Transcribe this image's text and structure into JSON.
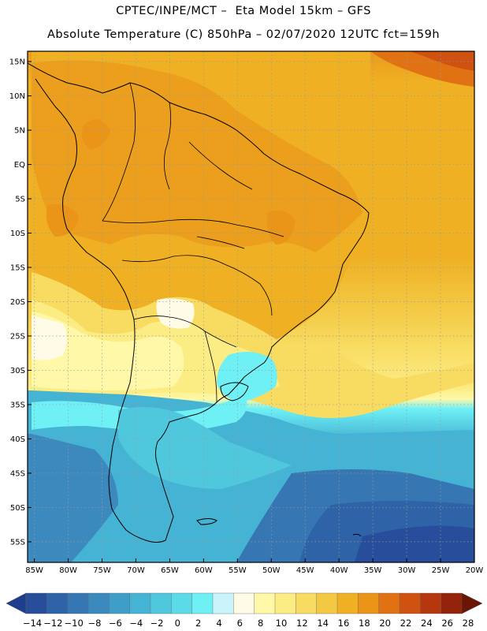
{
  "header": {
    "line1": "CPTEC/INPE/MCT –  Eta Model 15km – GFS",
    "line2": "Absolute Temperature (C) 850hPa – 02/07/2020 12UTC fct=159h"
  },
  "map": {
    "lat_labels": [
      "15N",
      "10N",
      "5N",
      "EQ",
      "5S",
      "10S",
      "15S",
      "20S",
      "25S",
      "30S",
      "35S",
      "40S",
      "45S",
      "50S",
      "55S"
    ],
    "lat_values": [
      15,
      10,
      5,
      0,
      -5,
      -10,
      -15,
      -20,
      -25,
      -30,
      -35,
      -40,
      -45,
      -50,
      -55
    ],
    "lon_labels": [
      "85W",
      "80W",
      "75W",
      "70W",
      "65W",
      "60W",
      "55W",
      "50W",
      "45W",
      "40W",
      "35W",
      "30W",
      "25W",
      "20W"
    ],
    "lon_values": [
      -85,
      -80,
      -75,
      -70,
      -65,
      -60,
      -55,
      -50,
      -45,
      -40,
      -35,
      -30,
      -25,
      -20
    ],
    "extent": {
      "lon_min": -86,
      "lon_max": -20,
      "lat_min": -58,
      "lat_max": 16.5
    },
    "variable": "Absolute Temperature (C) 850hPa"
  },
  "colorbar": {
    "labels": [
      "-14",
      "-12",
      "-10",
      "-8",
      "-6",
      "-4",
      "-2",
      "0",
      "2",
      "4",
      "6",
      "8",
      "10",
      "12",
      "14",
      "16",
      "18",
      "20",
      "22",
      "24",
      "26",
      "28"
    ],
    "colors": [
      "#1f3d8f",
      "#274d9b",
      "#2e63a8",
      "#3676b3",
      "#3b89bd",
      "#3f9ec7",
      "#45b3d3",
      "#4fc8de",
      "#5bdbe8",
      "#6ef0f5",
      "#c9f3fb",
      "#fffbe6",
      "#fff8a8",
      "#fcec84",
      "#f8dc62",
      "#f3c843",
      "#efb023",
      "#ea9418",
      "#e07213",
      "#cf5210",
      "#b4370d",
      "#93230b",
      "#6b1506"
    ]
  }
}
